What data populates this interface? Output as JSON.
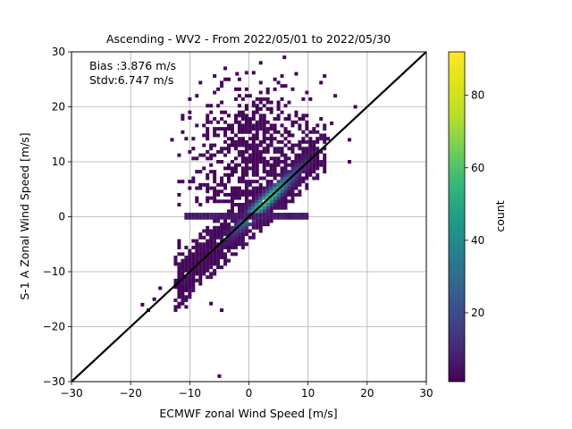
{
  "chart_data": {
    "type": "heatmap",
    "title": "Ascending - WV2 - From 2022/05/01 to 2022/05/30",
    "xlabel": "ECMWF zonal Wind Speed [m/s]",
    "ylabel": "S-1 A Zonal Wind Speed [m/s]",
    "xlim": [
      -30,
      30
    ],
    "ylim": [
      -30,
      30
    ],
    "xticks": [
      "−30",
      "−20",
      "−10",
      "0",
      "10",
      "20",
      "30"
    ],
    "yticks": [
      "−30",
      "−20",
      "−10",
      "0",
      "10",
      "20",
      "30"
    ],
    "grid": true,
    "reference_line": {
      "x": [
        -30,
        30
      ],
      "y": [
        -30,
        30
      ],
      "color": "#000000"
    },
    "annotations": [
      "Bias :3.876 m/s",
      "Stdv:6.747 m/s"
    ],
    "colorbar": {
      "label": "count",
      "range": [
        1,
        92
      ],
      "ticks": [
        "20",
        "40",
        "60",
        "80"
      ],
      "tick_values": [
        20,
        40,
        60,
        80
      ],
      "colormap": "viridis"
    },
    "density_regions": [
      {
        "description": "diagonal core",
        "x_range": [
          -12,
          12
        ],
        "along": "y=x",
        "peak_count": 92
      },
      {
        "description": "upper cloud",
        "x_range": [
          -12,
          18
        ],
        "y_range": [
          2,
          27
        ],
        "typical_count": 3
      },
      {
        "description": "horizontal band at y=0",
        "x_range": [
          -11,
          10
        ],
        "y": 0,
        "typical_count": 6
      }
    ]
  },
  "colors": {
    "line": "#000000",
    "grid": "#b0b0b0",
    "viridis_low": "#440154",
    "viridis_high": "#fde725"
  }
}
